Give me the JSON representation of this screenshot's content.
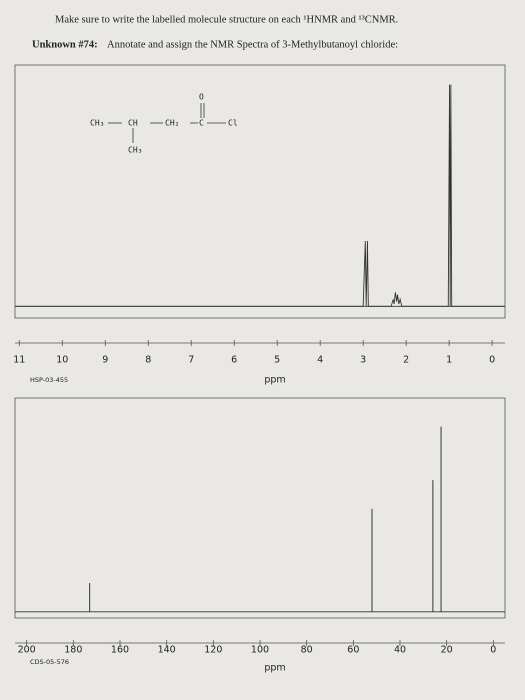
{
  "header": {
    "instruction": "Make sure to write the labelled molecule structure on each ¹HNMR and ¹³CNMR.",
    "label": "Unknown #74:",
    "task": "Annotate and assign the NMR Spectra of 3-Methylbutanoyl chloride:"
  },
  "structure": {
    "atoms": [
      "CH₃",
      "CH",
      "CH₂",
      "C",
      "Cl",
      "O",
      "CH₃"
    ]
  },
  "chart_data": [
    {
      "type": "line",
      "xlabel": "ppm",
      "code": "HSP-03-455",
      "color": "#333333",
      "x": [
        11.1,
        3.0,
        2.95,
        2.93,
        2.9,
        2.88,
        2.35,
        2.3,
        2.28,
        2.25,
        2.22,
        2.2,
        2.17,
        2.14,
        2.1,
        1.02,
        0.99,
        0.975,
        0.96,
        0.94,
        -0.3
      ],
      "values": [
        0,
        0,
        28,
        0,
        28,
        0,
        0,
        3,
        1,
        6,
        2,
        5,
        1,
        3,
        0,
        0,
        95,
        0,
        95,
        0,
        0
      ],
      "xlim": [
        11.1,
        -0.3
      ],
      "ylim": [
        -5,
        100
      ],
      "xticks": [
        11,
        10,
        9,
        8,
        7,
        6,
        5,
        4,
        3,
        2,
        1,
        0
      ]
    },
    {
      "type": "stem",
      "xlabel": "ppm",
      "code": "CDS-05-576",
      "color": "#333333",
      "x": [
        173,
        52,
        25.9,
        22.4
      ],
      "values": [
        14,
        50,
        64,
        90
      ],
      "xlim": [
        205,
        -5
      ],
      "ylim": [
        -3,
        100
      ],
      "xticks": [
        200,
        180,
        160,
        140,
        120,
        100,
        80,
        60,
        40,
        20,
        0
      ]
    }
  ]
}
